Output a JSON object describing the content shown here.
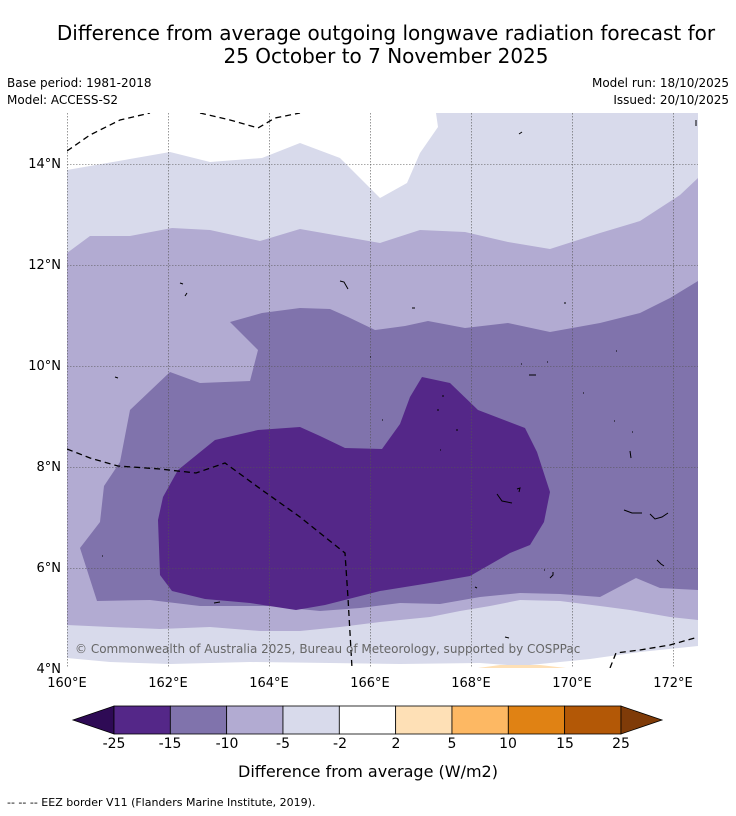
{
  "title": {
    "line1": "Difference from average outgoing longwave radiation forecast for",
    "line2": "25 October to 7 November 2025"
  },
  "meta": {
    "base_period": "Base period: 1981-2018",
    "model": "Model: ACCESS-S2",
    "model_run": "Model run: 18/10/2025",
    "issued": "Issued: 20/10/2025"
  },
  "map": {
    "lon_labels": [
      "160°E",
      "162°E",
      "164°E",
      "166°E",
      "168°E",
      "170°E",
      "172°E"
    ],
    "lat_labels": [
      "4°N",
      "6°N",
      "8°N",
      "10°N",
      "12°N",
      "14°N"
    ],
    "copyright": "© Commonwealth of Australia 2025, Bureau of Meteorology, supported by COSPPac"
  },
  "colorbar": {
    "ticks": [
      "-25",
      "-15",
      "-10",
      "-5",
      "-2",
      "2",
      "5",
      "10",
      "15",
      "25"
    ],
    "colors": [
      "#2e0a55",
      "#542788",
      "#8073ac",
      "#b2abd2",
      "#d8daeb",
      "#ffffff",
      "#fee0b6",
      "#fdb863",
      "#e08214",
      "#b35806",
      "#7f3b08"
    ],
    "label": "Difference from average (W/m2)"
  },
  "footnote": "--  --  -- EEZ border V11 (Flanders Marine Institute, 2019)."
}
